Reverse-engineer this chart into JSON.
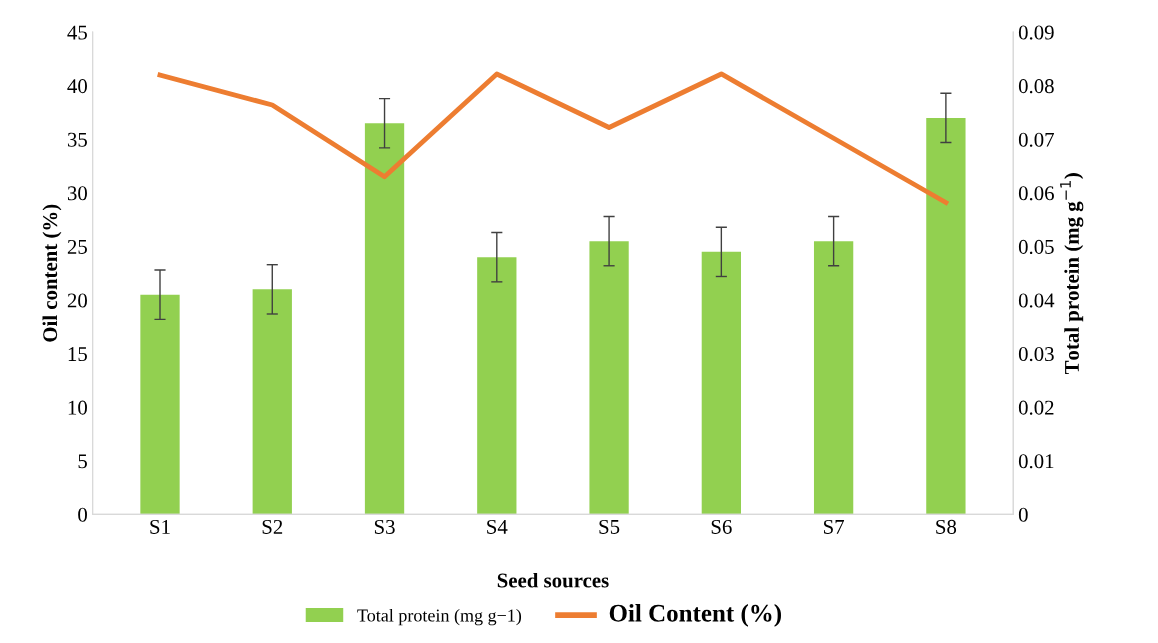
{
  "chart_data": {
    "type": "bar",
    "xlabel": "Seed sources",
    "ylabel": "Oil content (%)",
    "y2label": "Total protein (mg g$^{−1}$)",
    "categories": [
      "S1",
      "S2",
      "S3",
      "S4",
      "S5",
      "S6",
      "S7",
      "S8"
    ],
    "series": [
      {
        "name": "Total protein (mg g−1)",
        "axis": "y2",
        "color": "#92d050",
        "values": [
          0.041,
          0.042,
          0.073,
          0.048,
          0.051,
          0.049,
          0.051,
          0.074
        ],
        "errors": [
          0.0046,
          0.0046,
          0.0046,
          0.0046,
          0.0046,
          0.0046,
          0.0046,
          0.0046
        ]
      },
      {
        "name": "Oil Content (%)",
        "type": "line",
        "axis": "y",
        "color": "#ed7d31",
        "values": [
          41.0,
          38.2,
          31.5,
          41.1,
          36.1,
          41.1,
          35.1,
          29.1
        ]
      }
    ],
    "ylim": [
      0,
      45
    ],
    "yticks": [
      0,
      5,
      10,
      15,
      20,
      25,
      30,
      35,
      40,
      45
    ],
    "y2lim": [
      0,
      0.09
    ],
    "y2ticks": [
      0,
      0.01,
      0.02,
      0.03,
      0.04,
      0.05,
      0.06,
      0.07,
      0.08,
      0.09
    ],
    "grid": false,
    "legend": "bottom",
    "marker": "none",
    "line_style": "solid"
  }
}
